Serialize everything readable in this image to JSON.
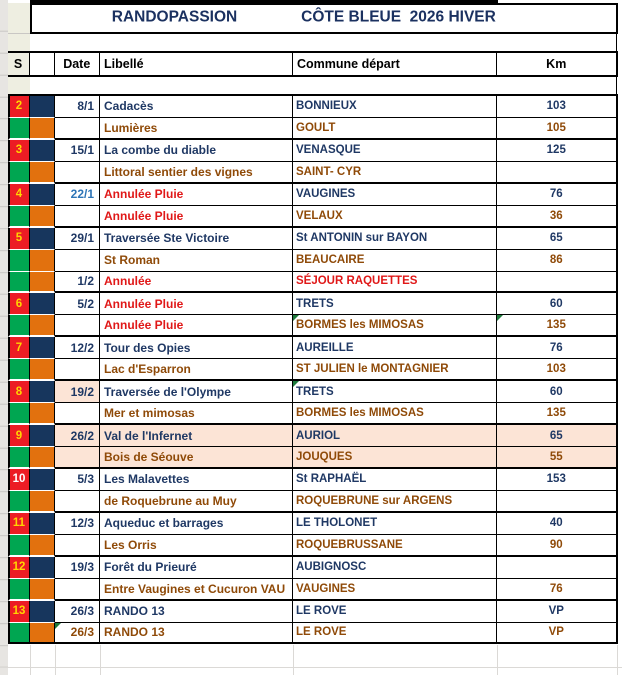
{
  "title": {
    "left": "RANDOPASSION",
    "right": "CÔTE BLEUE  2026 HIVER"
  },
  "columns": {
    "s": "S",
    "blank": "",
    "date": "Date",
    "libelle": "Libellé",
    "commune": "Commune départ",
    "km": "Km"
  },
  "palette": {
    "red_fill": "#EC1C24",
    "navy_fill": "#17365D",
    "green_fill": "#00A651",
    "orange_fill": "#E2710E",
    "peach_fill": "#FCE4D6",
    "beige_fill": "#EEEEE1",
    "navy": "#1F3864",
    "brown": "#8F4A08",
    "red": "#E01818",
    "blue": "#2E75B6",
    "yellow": "#FFD500",
    "white": "#FFFFFF",
    "title_navy": "#1B3160"
  },
  "rows": [
    {
      "band": "main",
      "s": "2",
      "s_color": "yellow",
      "date": "8/1",
      "date_color": "navy",
      "lib": "Cadacès",
      "lib_color": "navy",
      "com": "BONNIEUX",
      "com_color": "navy",
      "km": "103",
      "km_color": "navy",
      "peach": [],
      "tri": [],
      "thick": false
    },
    {
      "band": "alt",
      "s": "",
      "s_color": "yellow",
      "date": "",
      "date_color": "navy",
      "lib": "Lumières",
      "lib_color": "brown",
      "com": "GOULT",
      "com_color": "brown",
      "km": "105",
      "km_color": "brown",
      "peach": [],
      "tri": [],
      "thick": true
    },
    {
      "band": "main",
      "s": "3",
      "s_color": "yellow",
      "date": "15/1",
      "date_color": "navy",
      "lib": "La combe du diable",
      "lib_color": "navy",
      "com": "VENASQUE",
      "com_color": "navy",
      "km": "125",
      "km_color": "navy",
      "peach": [],
      "tri": [],
      "thick": false
    },
    {
      "band": "alt",
      "s": "",
      "s_color": "yellow",
      "date": "",
      "date_color": "navy",
      "lib": "Littoral sentier des vignes",
      "lib_color": "brown",
      "com": "SAINT- CYR",
      "com_color": "brown",
      "km": "",
      "km_color": "navy",
      "peach": [],
      "tri": [],
      "thick": true
    },
    {
      "band": "main",
      "s": "4",
      "s_color": "yellow",
      "date": "22/1",
      "date_color": "blue",
      "lib": "Annulée Pluie",
      "lib_color": "red",
      "com": "VAUGINES",
      "com_color": "navy",
      "km": "76",
      "km_color": "navy",
      "peach": [],
      "tri": [],
      "thick": false
    },
    {
      "band": "alt",
      "s": "",
      "s_color": "yellow",
      "date": "",
      "date_color": "navy",
      "lib": "Annulée Pluie",
      "lib_color": "red",
      "com": "VELAUX",
      "com_color": "brown",
      "km": "36",
      "km_color": "brown",
      "peach": [],
      "tri": [],
      "thick": true
    },
    {
      "band": "main",
      "s": "5",
      "s_color": "yellow",
      "date": "29/1",
      "date_color": "navy",
      "lib": "Traversée Ste Victoire",
      "lib_color": "navy",
      "com": "St ANTONIN sur BAYON",
      "com_color": "navy",
      "km": "65",
      "km_color": "navy",
      "peach": [],
      "tri": [],
      "thick": false
    },
    {
      "band": "alt",
      "s": "",
      "s_color": "yellow",
      "date": "",
      "date_color": "navy",
      "lib": "St Roman",
      "lib_color": "brown",
      "com": "BEAUCAIRE",
      "com_color": "brown",
      "km": "86",
      "km_color": "brown",
      "peach": [],
      "tri": [],
      "thick": false
    },
    {
      "band": "alt",
      "s": "",
      "s_color": "yellow",
      "date": "1/2",
      "date_color": "navy",
      "lib": "Annulée",
      "lib_color": "red",
      "com": "SÉJOUR RAQUETTES",
      "com_color": "red",
      "km": "",
      "km_color": "navy",
      "peach": [],
      "tri": [],
      "thick": true
    },
    {
      "band": "main",
      "s": "6",
      "s_color": "yellow",
      "date": "5/2",
      "date_color": "navy",
      "lib": "Annulée Pluie",
      "lib_color": "red",
      "com": "TRETS",
      "com_color": "navy",
      "km": "60",
      "km_color": "navy",
      "peach": [],
      "tri": [],
      "thick": false
    },
    {
      "band": "alt",
      "s": "",
      "s_color": "yellow",
      "date": "",
      "date_color": "navy",
      "lib": "Annulée Pluie",
      "lib_color": "red",
      "com": "BORMES les MIMOSAS",
      "com_color": "brown",
      "km": "135",
      "km_color": "brown",
      "peach": [],
      "tri": [
        "com",
        "km"
      ],
      "thick": true
    },
    {
      "band": "main",
      "s": "7",
      "s_color": "yellow",
      "date": "12/2",
      "date_color": "navy",
      "lib": "Tour des Opies",
      "lib_color": "navy",
      "com": "AUREILLE",
      "com_color": "navy",
      "km": "76",
      "km_color": "navy",
      "peach": [],
      "tri": [],
      "thick": false
    },
    {
      "band": "alt",
      "s": "",
      "s_color": "yellow",
      "date": "",
      "date_color": "navy",
      "lib": "Lac d'Esparron",
      "lib_color": "brown",
      "com": "ST JULIEN le MONTAGNIER",
      "com_color": "brown",
      "km": "103",
      "km_color": "brown",
      "peach": [],
      "tri": [],
      "thick": true
    },
    {
      "band": "main",
      "s": "8",
      "s_color": "yellow",
      "date": "19/2",
      "date_color": "navy",
      "lib": "Traversée de l'Olympe",
      "lib_color": "navy",
      "com": "TRETS",
      "com_color": "navy",
      "km": "60",
      "km_color": "navy",
      "peach": [
        "date"
      ],
      "tri": [
        "com"
      ],
      "thick": false
    },
    {
      "band": "alt",
      "s": "",
      "s_color": "yellow",
      "date": "",
      "date_color": "navy",
      "lib": "Mer et mimosas",
      "lib_color": "brown",
      "com": "BORMES les MIMOSAS",
      "com_color": "brown",
      "km": "135",
      "km_color": "brown",
      "peach": [],
      "tri": [],
      "thick": true
    },
    {
      "band": "main",
      "s": "9",
      "s_color": "yellow",
      "date": "26/2",
      "date_color": "navy",
      "lib": "Val de l'Infernet",
      "lib_color": "navy",
      "com": "AURIOL",
      "com_color": "navy",
      "km": "65",
      "km_color": "navy",
      "peach": [
        "date",
        "lib",
        "com",
        "km"
      ],
      "tri": [],
      "thick": false
    },
    {
      "band": "alt",
      "s": "",
      "s_color": "yellow",
      "date": "",
      "date_color": "navy",
      "lib": "Bois de Séouve",
      "lib_color": "brown",
      "com": "JOUQUES",
      "com_color": "brown",
      "km": "55",
      "km_color": "brown",
      "peach": [
        "date",
        "lib",
        "com",
        "km"
      ],
      "tri": [],
      "thick": true
    },
    {
      "band": "main",
      "s": "10",
      "s_color": "white",
      "date": "5/3",
      "date_color": "navy",
      "lib": "Les Malavettes",
      "lib_color": "navy",
      "com": "St RAPHAËL",
      "com_color": "navy",
      "km": "153",
      "km_color": "navy",
      "peach": [],
      "tri": [],
      "thick": false
    },
    {
      "band": "alt",
      "s": "",
      "s_color": "yellow",
      "date": "",
      "date_color": "navy",
      "lib": "de Roquebrune au Muy",
      "lib_color": "brown",
      "com": "ROQUEBRUNE sur ARGENS",
      "com_color": "brown",
      "km": "",
      "km_color": "navy",
      "peach": [],
      "tri": [],
      "thick": true
    },
    {
      "band": "main",
      "s": "11",
      "s_color": "yellow",
      "date": "12/3",
      "date_color": "navy",
      "lib": "Aqueduc et barrages",
      "lib_color": "navy",
      "com": "LE THOLONET",
      "com_color": "navy",
      "km": "40",
      "km_color": "navy",
      "peach": [],
      "tri": [],
      "thick": false
    },
    {
      "band": "alt",
      "s": "",
      "s_color": "yellow",
      "date": "",
      "date_color": "navy",
      "lib": "Les Orris",
      "lib_color": "brown",
      "com": "ROQUEBRUSSANE",
      "com_color": "brown",
      "km": "90",
      "km_color": "brown",
      "peach": [],
      "tri": [],
      "thick": true
    },
    {
      "band": "main",
      "s": "12",
      "s_color": "yellow",
      "date": "19/3",
      "date_color": "navy",
      "lib": "Forêt du Prieuré",
      "lib_color": "navy",
      "com": "AUBIGNOSC",
      "com_color": "navy",
      "km": "",
      "km_color": "navy",
      "peach": [],
      "tri": [],
      "thick": false
    },
    {
      "band": "alt",
      "s": "",
      "s_color": "yellow",
      "date": "",
      "date_color": "navy",
      "lib": "Entre Vaugines et Cucuron VAU",
      "lib_color": "brown",
      "com": "VAUGINES",
      "com_color": "brown",
      "km": "76",
      "km_color": "brown",
      "peach": [],
      "tri": [],
      "thick": true
    },
    {
      "band": "main",
      "s": "13",
      "s_color": "yellow",
      "date": "26/3",
      "date_color": "navy",
      "lib": "RANDO 13",
      "lib_color": "navy",
      "com": "LE ROVE",
      "com_color": "navy",
      "km": "VP",
      "km_color": "navy",
      "peach": [],
      "tri": [],
      "thick": false
    },
    {
      "band": "alt",
      "s": "",
      "s_color": "yellow",
      "date": "26/3",
      "date_color": "brown",
      "lib": "RANDO 13",
      "lib_color": "brown",
      "com": "LE ROVE",
      "com_color": "brown",
      "km": "VP",
      "km_color": "brown",
      "peach": [],
      "tri": [
        "date"
      ],
      "thick": true
    }
  ]
}
